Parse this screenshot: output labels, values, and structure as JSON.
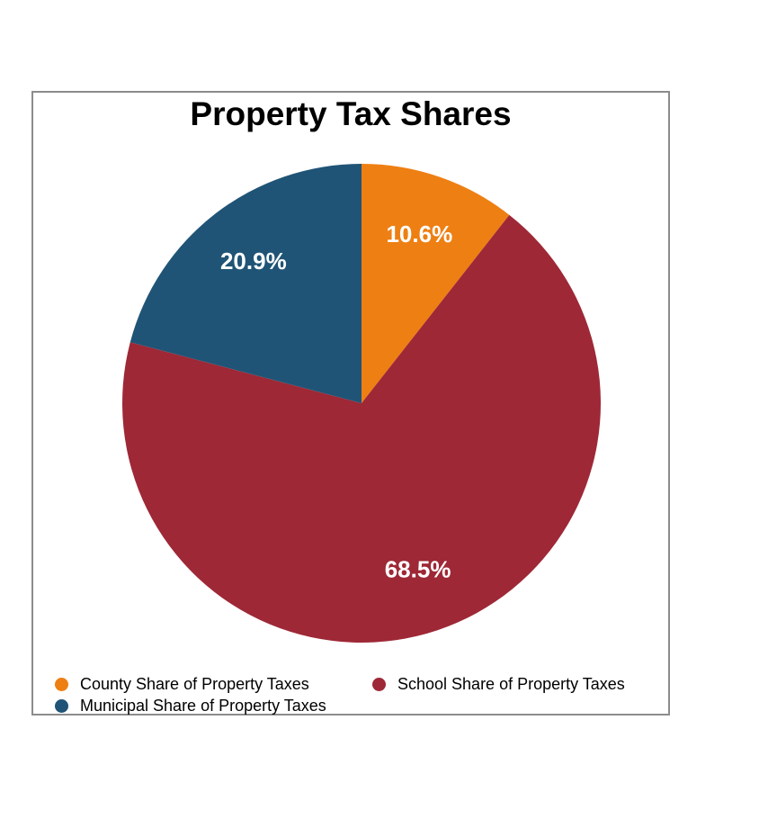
{
  "chart_data": {
    "type": "pie",
    "title": "Property Tax Shares",
    "slices": [
      {
        "name": "County Share of Property Taxes",
        "value": 10.6,
        "label": "10.6%",
        "color": "#ee7f13"
      },
      {
        "name": "School Share of Property Taxes",
        "value": 68.5,
        "label": "68.5%",
        "color": "#9e2836"
      },
      {
        "name": "Municipal Share of Property Taxes",
        "value": 20.9,
        "label": "20.9%",
        "color": "#1f5476"
      }
    ],
    "start_angle": "12 o'clock",
    "direction": "clockwise",
    "legend_position": "bottom"
  },
  "legend": {
    "items": [
      {
        "name": "County Share of Property Taxes",
        "color": "#ee7f13"
      },
      {
        "name": "School Share of Property Taxes",
        "color": "#9e2836"
      },
      {
        "name": "Municipal Share of Property Taxes",
        "color": "#1f5476"
      }
    ]
  }
}
